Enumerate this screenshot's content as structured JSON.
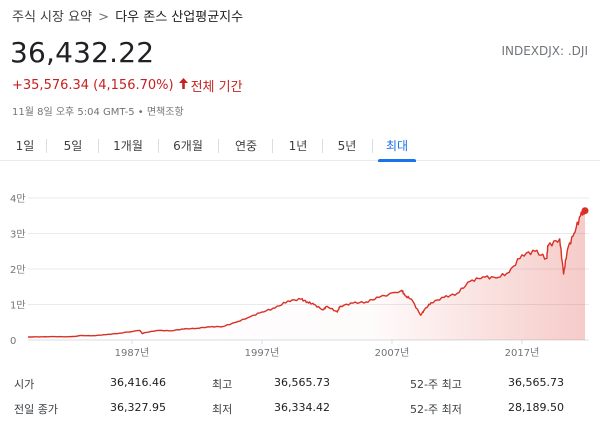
{
  "breadcrumb": {
    "parent": "주식 시장 요약",
    "separator": ">",
    "current": "다우 존스 산업평균지수"
  },
  "quote": {
    "price": "36,432.22",
    "ticker": "INDEXDJX: .DJI",
    "change": "+35,576.34 (4,156.70%)",
    "period": "전체 기간",
    "timestamp": "11월 8일 오후 5:04 GMT-5 • 면책조항"
  },
  "tabs": [
    {
      "label": "1일",
      "active": false
    },
    {
      "label": "5일",
      "active": false
    },
    {
      "label": "1개월",
      "active": false
    },
    {
      "label": "6개월",
      "active": false
    },
    {
      "label": "연중",
      "active": false
    },
    {
      "label": "1년",
      "active": false
    },
    {
      "label": "5년",
      "active": false
    },
    {
      "label": "최대",
      "active": true
    }
  ],
  "colors": {
    "line": "#d93025",
    "negative": "#c5221f",
    "accent": "#1a73e8",
    "grid": "#e8eaed"
  },
  "chart_data": {
    "type": "line",
    "title": "",
    "xlabel": "",
    "ylabel": "",
    "x_ticks": [
      "1987년",
      "1997년",
      "2007년",
      "2017년"
    ],
    "y_ticks": [
      "0",
      "1만",
      "2만",
      "3만",
      "4만"
    ],
    "ylim": [
      0,
      40000
    ],
    "xlim": [
      1979.0,
      2021.85
    ],
    "grid": true,
    "series": [
      {
        "x": [
          1979.0,
          1980,
          1981,
          1982,
          1982.6,
          1983,
          1984,
          1985,
          1986,
          1987.6,
          1987.8,
          1988,
          1989,
          1990,
          1991,
          1992,
          1993,
          1994,
          1995,
          1996,
          1997,
          1998,
          1999,
          2000.0,
          2000.5,
          2001,
          2001.7,
          2002,
          2002.8,
          2003,
          2004,
          2005,
          2006,
          2007.75,
          2008,
          2008.5,
          2009.2,
          2009.5,
          2010,
          2011,
          2012,
          2013,
          2014,
          2015,
          2016,
          2017,
          2018,
          2018.9,
          2019,
          2019.9,
          2020.2,
          2020.5,
          2021,
          2021.5,
          2021.85
        ],
        "y": [
          850,
          900,
          950,
          900,
          1000,
          1250,
          1200,
          1500,
          1900,
          2700,
          1800,
          2100,
          2700,
          2600,
          3100,
          3300,
          3700,
          3800,
          5000,
          6400,
          7900,
          9000,
          11000,
          11500,
          10700,
          10000,
          8500,
          9500,
          7900,
          9500,
          10400,
          10700,
          12000,
          14000,
          12500,
          11500,
          7000,
          8500,
          10500,
          12000,
          13100,
          16500,
          17800,
          17500,
          19000,
          24000,
          25000,
          23000,
          26500,
          28500,
          18600,
          25500,
          30000,
          35000,
          36432
        ]
      }
    ]
  },
  "stats": {
    "rows": [
      {
        "l1": "시가",
        "v1": "36,416.46",
        "l2": "최고",
        "v2": "36,565.73",
        "l3": "52-주 최고",
        "v3": "36,565.73"
      },
      {
        "l1": "전일 종가",
        "v1": "36,327.95",
        "l2": "최저",
        "v2": "36,334.42",
        "l3": "52-주 최저",
        "v3": "28,189.50"
      }
    ]
  }
}
